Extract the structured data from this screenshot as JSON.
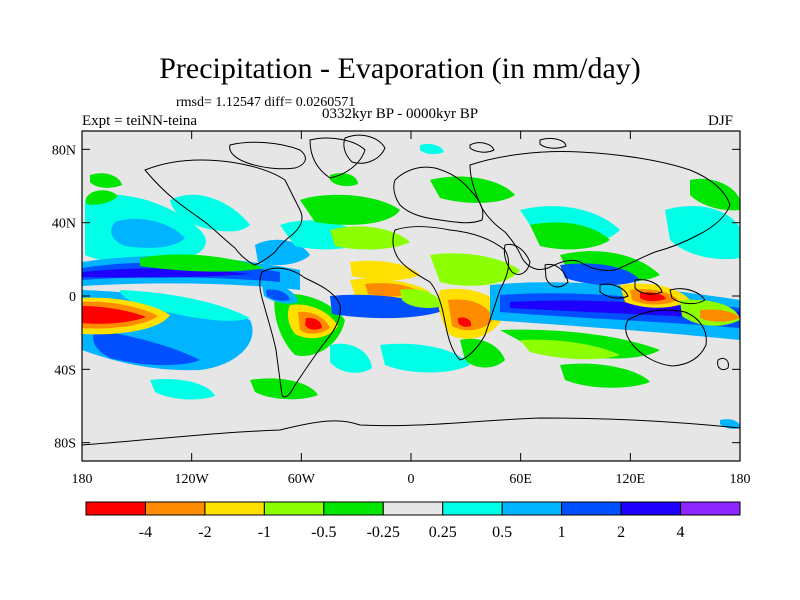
{
  "header": {
    "title": "Precipitation - Evaporation (in mm/day)",
    "stats": "rmsd= 1.12547 diff= 0.0260571",
    "experiment": "Expt = teiNN-teina",
    "period": "0332kyr BP - 0000kyr BP",
    "season": "DJF"
  },
  "map": {
    "lon_ticks": [
      "180",
      "120W",
      "60W",
      "0",
      "60E",
      "120E",
      "180"
    ],
    "lat_ticks": [
      "80N",
      "40N",
      "0",
      "40S",
      "80S"
    ],
    "background_color": "#e6e6e6",
    "coastline_color": "#000000"
  },
  "colorbar": {
    "colors": [
      "#ff0000",
      "#ff8c00",
      "#ffe000",
      "#8cff00",
      "#00e600",
      "#e6e6e6",
      "#00ffe6",
      "#00b4ff",
      "#0050ff",
      "#1e00ff",
      "#8c28ff"
    ],
    "labels": [
      "-4",
      "-2",
      "-1",
      "-0.5",
      "-0.25",
      "0.25",
      "0.5",
      "1",
      "2",
      "4"
    ]
  }
}
